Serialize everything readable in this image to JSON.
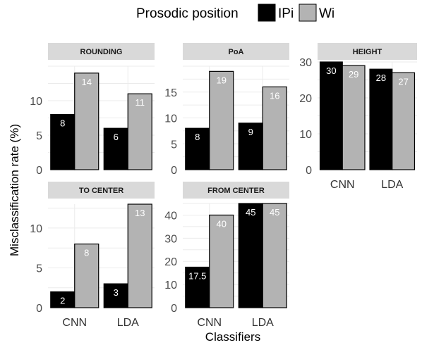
{
  "legend": {
    "title": "Prosodic position",
    "items": [
      {
        "label": "IPi",
        "color": "#000000"
      },
      {
        "label": "Wi",
        "color": "#b3b3b3"
      }
    ]
  },
  "ylabel": "Misclassification rate (%)",
  "xlabel": "Classifiers",
  "chart_data": [
    {
      "type": "bar",
      "title": "ROUNDING",
      "categories": [
        "CNN",
        "LDA"
      ],
      "series": [
        {
          "name": "IPi",
          "values": [
            8,
            6
          ]
        },
        {
          "name": "Wi",
          "values": [
            14,
            11
          ]
        }
      ],
      "ylim": [
        0,
        15
      ],
      "yticks": [
        0,
        5,
        10
      ],
      "show_x_tick_labels": false,
      "value_labels": true,
      "grid": true
    },
    {
      "type": "bar",
      "title": "PoA",
      "categories": [
        "CNN",
        "LDA"
      ],
      "series": [
        {
          "name": "IPi",
          "values": [
            8,
            9
          ]
        },
        {
          "name": "Wi",
          "values": [
            19,
            16
          ]
        }
      ],
      "ylim": [
        0,
        20
      ],
      "yticks": [
        0,
        5,
        10,
        15
      ],
      "show_x_tick_labels": false,
      "value_labels": true,
      "grid": true
    },
    {
      "type": "bar",
      "title": "HEIGHT",
      "categories": [
        "CNN",
        "LDA"
      ],
      "series": [
        {
          "name": "IPi",
          "values": [
            30,
            28
          ]
        },
        {
          "name": "Wi",
          "values": [
            29,
            27
          ]
        }
      ],
      "ylim": [
        0,
        30
      ],
      "yticks": [
        0,
        10,
        20,
        30
      ],
      "show_x_tick_labels": true,
      "value_labels": true,
      "grid": true
    },
    {
      "type": "bar",
      "title": "TO CENTER",
      "categories": [
        "CNN",
        "LDA"
      ],
      "series": [
        {
          "name": "IPi",
          "values": [
            2,
            3
          ]
        },
        {
          "name": "Wi",
          "values": [
            8,
            13
          ]
        }
      ],
      "ylim": [
        0,
        13
      ],
      "yticks": [
        0,
        5,
        10
      ],
      "show_x_tick_labels": true,
      "value_labels": true,
      "grid": true
    },
    {
      "type": "bar",
      "title": "FROM CENTER",
      "categories": [
        "CNN",
        "LDA"
      ],
      "series": [
        {
          "name": "IPi",
          "values": [
            17.5,
            45
          ]
        },
        {
          "name": "Wi",
          "values": [
            40,
            45
          ]
        }
      ],
      "ylim": [
        0,
        45
      ],
      "yticks": [
        0,
        10,
        20,
        30,
        40
      ],
      "show_x_tick_labels": true,
      "value_labels": true,
      "grid": true
    }
  ]
}
